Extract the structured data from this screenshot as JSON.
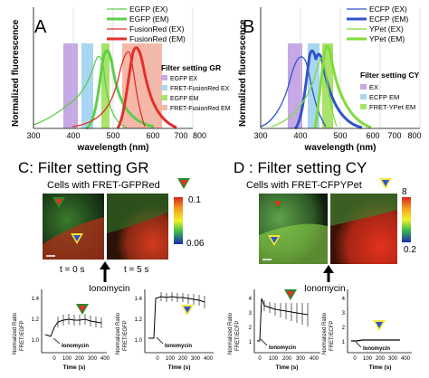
{
  "panels": {
    "A": {
      "letter": "A",
      "ylabel": "Normalized fluorescence",
      "xlabel": "wavelength (nm)",
      "xticks": [
        "300",
        "400",
        "500",
        "600",
        "700",
        "800"
      ],
      "legend": [
        "EGFP (EX)",
        "EGFP (EM)",
        "FusionRed (EX)",
        "FusionRed (EM)"
      ],
      "filter_title": "Filter setting GR",
      "filter_items": [
        "EGFP EX",
        "FRET-FusionRed EX",
        "EGFP EM",
        "FRET-FusionRed EM"
      ]
    },
    "B": {
      "letter": "B",
      "ylabel": "Normalized fluorescence",
      "xlabel": "wavelength (nm)",
      "xticks": [
        "300",
        "400",
        "500",
        "600",
        "700",
        "800"
      ],
      "legend": [
        "ECFP (EX)",
        "ECFP (EM)",
        "YPet (EX)",
        "YPet (EM)"
      ],
      "filter_title": "Filter setting CY",
      "filter_items": [
        "EX",
        "ECFP EM",
        "FRET-YPet EM"
      ]
    },
    "C": {
      "heading": "C: Filter setting GR",
      "subheading": "Cells with FRET-GFPRed",
      "scale_max": "0.1",
      "scale_min": "0.06",
      "time0": "t = 0 s",
      "time5": "t = 5 s",
      "stimulus": "Ionomycin",
      "graph1": {
        "ylabel1": "Normalized Ratio",
        "ylabel2": "FRET/EGFP",
        "xlabel": "Time (s)",
        "annot": "Ionomycin",
        "yticks": [
          "1.0",
          "1.2",
          "1.4"
        ],
        "xticks": [
          "0",
          "100",
          "200",
          "300",
          "400"
        ]
      },
      "graph2": {
        "ylabel1": "Normalized Ratio",
        "ylabel2": "FRET/EGFP",
        "xlabel": "Time (s)",
        "annot": "Ionomycin",
        "yticks": [
          "1.0",
          "1.2",
          "1.4"
        ],
        "xticks": [
          "0",
          "100",
          "200",
          "300",
          "400"
        ]
      }
    },
    "D": {
      "heading": "D : Filter setting CY",
      "subheading": "Cells with FRET-CFPYPet",
      "scale_max": "8",
      "scale_min": "0.2",
      "stimulus": "Ionomycin",
      "graph1": {
        "ylabel1": "Normalized Ratio",
        "ylabel2": "FRET/ECFP",
        "xlabel": "Time (s)",
        "annot": "Ionomycin",
        "yticks": [
          "1",
          "2",
          "3",
          "4"
        ],
        "xticks": [
          "0",
          "100",
          "200",
          "300",
          "400"
        ]
      },
      "graph2": {
        "ylabel1": "Normalized Ratio",
        "ylabel2": "FRET/ECFP",
        "xlabel": "Time (s)",
        "annot": "Ionomycin",
        "yticks": [
          "1",
          "2",
          "3",
          "4"
        ],
        "xticks": [
          "0",
          "100",
          "200",
          "300",
          "400"
        ]
      }
    }
  },
  "colors": {
    "egfp": "#5ccf4a",
    "fusionred": "#e0312a",
    "ecfp": "#2f55c8",
    "ypet": "#7fdc3a",
    "purple_band": "#c6a8e6",
    "blue_band": "#a9d6f2",
    "green_band": "#a9e36b",
    "red_band": "#f5b8a8"
  }
}
